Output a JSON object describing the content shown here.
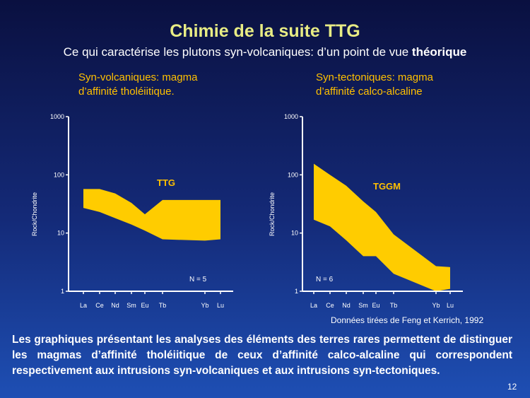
{
  "title": "Chimie de la suite TTG",
  "subtitle": {
    "text": "Ce qui caractérise les plutons syn-volcaniques: d’un point de vue ",
    "bold": "théorique"
  },
  "left_caption": {
    "line1": "Syn-volcaniques: magma",
    "line2": "d’affinité tholéiitique."
  },
  "right_caption": {
    "line1": "Syn-tectoniques: magma",
    "line2": "d’affinité calco-alcaline"
  },
  "source_note": "Données tirées de Feng et Kerrich, 1992",
  "body_text": "Les graphiques présentant les analyses des éléments des terres rares permettent de distinguer les magmas d’affinité tholéiitique de ceux d’affinité calco-alcaline qui correspondent respectivement aux intrusions syn-volcaniques et aux intrusions syn-tectoniques.",
  "page_number": "12",
  "colors": {
    "band": "#ffcc00",
    "caption": "#ffc000",
    "title": "#e8ec84"
  },
  "chart_data": [
    {
      "type": "area",
      "scale": "log",
      "ylabel": "Rock/Chondrite",
      "ylim": [
        1,
        1000
      ],
      "yticks": [
        "1000",
        "100",
        "10",
        "1"
      ],
      "x": [
        "La",
        "Ce",
        "Nd",
        "Sm",
        "Eu",
        "Tb",
        "Yb",
        "Lu"
      ],
      "band_label": "TTG",
      "n_label": "N = 5",
      "upper": [
        {
          "x": "La",
          "y": 57
        },
        {
          "x": "Ce",
          "y": 57
        },
        {
          "x": "Nd",
          "y": 48
        },
        {
          "x": "Sm",
          "y": 33
        },
        {
          "x": "Eu",
          "y": 21
        },
        {
          "x": "Tb",
          "y": 37
        },
        {
          "x": "Yb",
          "y": 37
        },
        {
          "x": "Lu",
          "y": 37
        }
      ],
      "lower": [
        {
          "x": "La",
          "y": 27
        },
        {
          "x": "Ce",
          "y": 23
        },
        {
          "x": "Nd",
          "y": 18
        },
        {
          "x": "Sm",
          "y": 14
        },
        {
          "x": "Eu",
          "y": 11
        },
        {
          "x": "Tb",
          "y": 7.8
        },
        {
          "x": "Yb",
          "y": 7.4
        },
        {
          "x": "Lu",
          "y": 7.8
        }
      ]
    },
    {
      "type": "area",
      "scale": "log",
      "ylabel": "Rock/Chondrite",
      "ylim": [
        1,
        1000
      ],
      "yticks": [
        "1000",
        "100",
        "10",
        "1"
      ],
      "x": [
        "La",
        "Ce",
        "Nd",
        "Sm",
        "Eu",
        "Tb",
        "Yb",
        "Lu"
      ],
      "band_label": "TGGM",
      "n_label": "N = 6",
      "upper": [
        {
          "x": "La",
          "y": 155
        },
        {
          "x": "Ce",
          "y": 100
        },
        {
          "x": "Nd",
          "y": 65
        },
        {
          "x": "Sm",
          "y": 35
        },
        {
          "x": "Eu",
          "y": 23
        },
        {
          "x": "Tb",
          "y": 9.5
        },
        {
          "x": "Yb",
          "y": 2.7
        },
        {
          "x": "Lu",
          "y": 2.6
        }
      ],
      "lower": [
        {
          "x": "La",
          "y": 17
        },
        {
          "x": "Ce",
          "y": 13
        },
        {
          "x": "Nd",
          "y": 7.5
        },
        {
          "x": "Sm",
          "y": 4
        },
        {
          "x": "Eu",
          "y": 4
        },
        {
          "x": "Tb",
          "y": 2
        },
        {
          "x": "Yb",
          "y": 1
        },
        {
          "x": "Lu",
          "y": 1.1
        }
      ]
    }
  ]
}
